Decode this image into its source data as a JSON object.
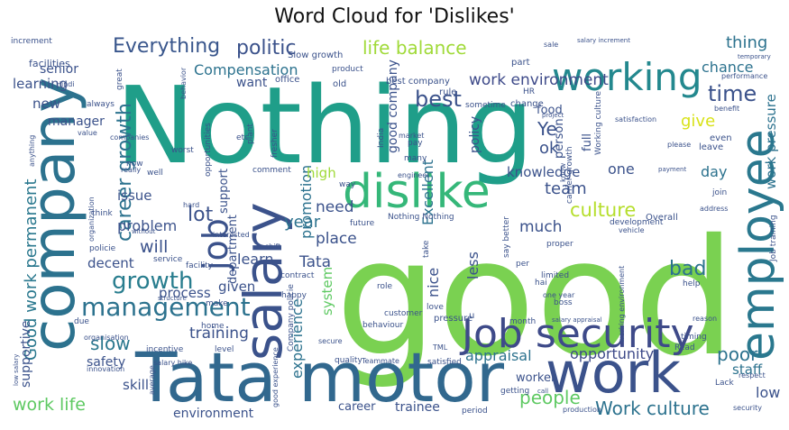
{
  "title": "Word Cloud for 'Dislikes'",
  "palette": {
    "dark_purple": "#472c7a",
    "indigo": "#3b528b",
    "blue": "#2c728e",
    "teal": "#21918c",
    "green_teal": "#28ae80",
    "green": "#5ec962",
    "lime": "#addc30",
    "yellow": "#d8e219"
  },
  "chart_data": {
    "type": "wordcloud",
    "words": [
      {
        "text": "Nothing",
        "color": "#1f9e89"
      },
      {
        "text": "good",
        "color": "#7ad151"
      },
      {
        "text": "Tata motor",
        "color": "#31688e"
      },
      {
        "text": "work",
        "color": "#3b528b"
      },
      {
        "text": "company",
        "color": "#2c728e"
      },
      {
        "text": "salary",
        "color": "#3b528b"
      },
      {
        "text": "dislike",
        "color": "#35b779"
      },
      {
        "text": "Job security",
        "color": "#3e4a89"
      },
      {
        "text": "employee",
        "color": "#2a788e"
      },
      {
        "text": "working",
        "color": "#23888e"
      },
      {
        "text": "job",
        "color": "#3b528b"
      },
      {
        "text": "management",
        "color": "#2c728e"
      },
      {
        "text": "growth",
        "color": "#287d8e"
      },
      {
        "text": "Good work permanent",
        "color": "#2a788e"
      },
      {
        "text": "career growth",
        "color": "#2c728e"
      },
      {
        "text": "Everything",
        "color": "#39568c"
      },
      {
        "text": "politic",
        "color": "#3b528b"
      },
      {
        "text": "life balance",
        "color": "#a0da39"
      },
      {
        "text": "work environment",
        "color": "#3e4a89"
      },
      {
        "text": "time",
        "color": "#3b528b"
      },
      {
        "text": "culture",
        "color": "#b5de2b"
      },
      {
        "text": "work life",
        "color": "#5ec962"
      },
      {
        "text": "lot",
        "color": "#3b528b"
      },
      {
        "text": "will",
        "color": "#3b528b"
      },
      {
        "text": "slow",
        "color": "#2a788e"
      },
      {
        "text": "bad",
        "color": "#2c728e"
      },
      {
        "text": "poor",
        "color": "#2c728e"
      },
      {
        "text": "Work culture",
        "color": "#2c728e"
      },
      {
        "text": "people",
        "color": "#5ec962"
      },
      {
        "text": "experience",
        "color": "#2c728e"
      },
      {
        "text": "promotion",
        "color": "#2c728e"
      },
      {
        "text": "Excellent",
        "color": "#2c728e"
      },
      {
        "text": "good company",
        "color": "#3b528b"
      },
      {
        "text": "best",
        "color": "#3b528b"
      },
      {
        "text": "Compensation",
        "color": "#2c728e"
      },
      {
        "text": "team",
        "color": "#3b528b"
      },
      {
        "text": "Ye",
        "color": "#3b528b"
      },
      {
        "text": "ok",
        "color": "#3b528b"
      },
      {
        "text": "give",
        "color": "#d8e219"
      },
      {
        "text": "thing",
        "color": "#2c728e"
      },
      {
        "text": "chance",
        "color": "#2c728e"
      },
      {
        "text": "day",
        "color": "#2c728e"
      },
      {
        "text": "work pressure",
        "color": "#2c728e"
      },
      {
        "text": "year",
        "color": "#2c728e"
      },
      {
        "text": "need",
        "color": "#3b528b"
      },
      {
        "text": "place",
        "color": "#3b528b"
      },
      {
        "text": "system",
        "color": "#5ec962"
      },
      {
        "text": "less",
        "color": "#3b528b"
      },
      {
        "text": "nice",
        "color": "#3b528b"
      },
      {
        "text": "Tata",
        "color": "#3b528b"
      },
      {
        "text": "learn",
        "color": "#3b528b"
      },
      {
        "text": "training",
        "color": "#3b528b"
      },
      {
        "text": "appraisal",
        "color": "#2c728e"
      },
      {
        "text": "opportunity",
        "color": "#3e4a89"
      },
      {
        "text": "skill",
        "color": "#3b528b"
      },
      {
        "text": "staff",
        "color": "#2c728e"
      },
      {
        "text": "low",
        "color": "#3b528b"
      },
      {
        "text": "knowledge",
        "color": "#3b528b"
      },
      {
        "text": "much",
        "color": "#3b528b"
      },
      {
        "text": "problem",
        "color": "#3b528b"
      },
      {
        "text": "issue",
        "color": "#3b528b"
      },
      {
        "text": "decent",
        "color": "#3b528b"
      },
      {
        "text": "process",
        "color": "#3b528b"
      },
      {
        "text": "given",
        "color": "#3b528b"
      },
      {
        "text": "senior",
        "color": "#3b528b"
      },
      {
        "text": "learning",
        "color": "#3b528b"
      },
      {
        "text": "new",
        "color": "#3b528b"
      },
      {
        "text": "manager",
        "color": "#3b528b"
      },
      {
        "text": "safety",
        "color": "#3b528b"
      },
      {
        "text": "environment",
        "color": "#3b528b"
      },
      {
        "text": "supportive",
        "color": "#3b528b"
      },
      {
        "text": "high",
        "color": "#a0da39"
      },
      {
        "text": "support",
        "color": "#3b528b"
      },
      {
        "text": "department",
        "color": "#3b528b"
      },
      {
        "text": "want",
        "color": "#3b528b"
      },
      {
        "text": "policy",
        "color": "#3b528b"
      },
      {
        "text": "one",
        "color": "#3b528b"
      },
      {
        "text": "full",
        "color": "#3b528b"
      },
      {
        "text": "person",
        "color": "#3b528b"
      },
      {
        "text": "food",
        "color": "#3b528b"
      },
      {
        "text": "worker",
        "color": "#3b528b"
      },
      {
        "text": "career",
        "color": "#3b528b"
      },
      {
        "text": "trainee",
        "color": "#3b528b"
      },
      {
        "text": "facilities",
        "color": "#3b528b"
      },
      {
        "text": "increment",
        "color": "#3b528b"
      },
      {
        "text": "salary increment",
        "color": "#3b528b"
      },
      {
        "text": "sale",
        "color": "#3b528b"
      },
      {
        "text": "temporary",
        "color": "#3b528b"
      },
      {
        "text": "performance",
        "color": "#3b528b"
      },
      {
        "text": "benefit",
        "color": "#3b528b"
      },
      {
        "text": "Slow growth",
        "color": "#3b528b"
      },
      {
        "text": "best company",
        "color": "#3b528b"
      },
      {
        "text": "part",
        "color": "#3b528b"
      },
      {
        "text": "product",
        "color": "#3b528b"
      },
      {
        "text": "office",
        "color": "#3b528b"
      },
      {
        "text": "old",
        "color": "#3b528b"
      },
      {
        "text": "sometime",
        "color": "#3b528b"
      },
      {
        "text": "HR",
        "color": "#3b528b"
      },
      {
        "text": "change",
        "color": "#3b528b"
      },
      {
        "text": "satisfaction",
        "color": "#3b528b"
      },
      {
        "text": "rule",
        "color": "#3b528b"
      },
      {
        "text": "Working culture",
        "color": "#3b528b"
      },
      {
        "text": "even",
        "color": "#3b528b"
      },
      {
        "text": "leave",
        "color": "#3b528b"
      },
      {
        "text": "please",
        "color": "#3b528b"
      },
      {
        "text": "payment",
        "color": "#3b528b"
      },
      {
        "text": "join",
        "color": "#3b528b"
      },
      {
        "text": "carrier growth",
        "color": "#3b528b"
      },
      {
        "text": "address",
        "color": "#3b528b"
      },
      {
        "text": "Overall",
        "color": "#3b528b"
      },
      {
        "text": "development",
        "color": "#3b528b"
      },
      {
        "text": "Job training",
        "color": "#3b528b"
      },
      {
        "text": "vehicle",
        "color": "#3b528b"
      },
      {
        "text": "help",
        "color": "#3b528b"
      },
      {
        "text": "reason",
        "color": "#3b528b"
      },
      {
        "text": "timing",
        "color": "#3b528b"
      },
      {
        "text": "Read",
        "color": "#3b528b"
      },
      {
        "text": "Lack",
        "color": "#3b528b"
      },
      {
        "text": "respect",
        "color": "#3b528b"
      },
      {
        "text": "security",
        "color": "#3b528b"
      },
      {
        "text": "Hindi",
        "color": "#3b528b"
      },
      {
        "text": "great",
        "color": "#3b528b"
      },
      {
        "text": "behavior",
        "color": "#3b528b"
      },
      {
        "text": "always",
        "color": "#3b528b"
      },
      {
        "text": "value",
        "color": "#3b528b"
      },
      {
        "text": "companies",
        "color": "#3b528b"
      },
      {
        "text": "anything",
        "color": "#3b528b"
      },
      {
        "text": "now",
        "color": "#3b528b"
      },
      {
        "text": "really",
        "color": "#3b528b"
      },
      {
        "text": "well",
        "color": "#3b528b"
      },
      {
        "text": "worst",
        "color": "#3b528b"
      },
      {
        "text": "opportunities",
        "color": "#3b528b"
      },
      {
        "text": "etc",
        "color": "#3b528b"
      },
      {
        "text": "plant",
        "color": "#3b528b"
      },
      {
        "text": "fresher",
        "color": "#3b528b"
      },
      {
        "text": "India",
        "color": "#3b528b"
      },
      {
        "text": "market",
        "color": "#3b528b"
      },
      {
        "text": "pay",
        "color": "#3b528b"
      },
      {
        "text": "many",
        "color": "#3b528b"
      },
      {
        "text": "engineer",
        "color": "#3b528b"
      },
      {
        "text": "project",
        "color": "#3b528b"
      },
      {
        "text": "comment",
        "color": "#3b528b"
      },
      {
        "text": "way",
        "color": "#3b528b"
      },
      {
        "text": "future",
        "color": "#3b528b"
      },
      {
        "text": "Nothing Nothing",
        "color": "#3b528b"
      },
      {
        "text": "hard",
        "color": "#3b528b"
      },
      {
        "text": "organization",
        "color": "#3b528b"
      },
      {
        "text": "think",
        "color": "#3b528b"
      },
      {
        "text": "without",
        "color": "#3b528b"
      },
      {
        "text": "policie",
        "color": "#3b528b"
      },
      {
        "text": "interested",
        "color": "#3b528b"
      },
      {
        "text": "shift",
        "color": "#3b528b"
      },
      {
        "text": "take",
        "color": "#3b528b"
      },
      {
        "text": "say better",
        "color": "#3b528b"
      },
      {
        "text": "per",
        "color": "#3b528b"
      },
      {
        "text": "proper",
        "color": "#3b528b"
      },
      {
        "text": "hai",
        "color": "#3b528b"
      },
      {
        "text": "service",
        "color": "#3b528b"
      },
      {
        "text": "facility",
        "color": "#3b528b"
      },
      {
        "text": "contract",
        "color": "#3b528b"
      },
      {
        "text": "role",
        "color": "#3b528b"
      },
      {
        "text": "limited",
        "color": "#3b528b"
      },
      {
        "text": "one year",
        "color": "#3b528b"
      },
      {
        "text": "boss",
        "color": "#3b528b"
      },
      {
        "text": "due",
        "color": "#3b528b"
      },
      {
        "text": "structure",
        "color": "#3b528b"
      },
      {
        "text": "make",
        "color": "#3b528b"
      },
      {
        "text": "happy",
        "color": "#3b528b"
      },
      {
        "text": "Company policie",
        "color": "#3b528b"
      },
      {
        "text": "customer",
        "color": "#3b528b"
      },
      {
        "text": "love",
        "color": "#3b528b"
      },
      {
        "text": "pressure",
        "color": "#3b528b"
      },
      {
        "text": "month",
        "color": "#3b528b"
      },
      {
        "text": "salary appraisal",
        "color": "#3b528b"
      },
      {
        "text": "working environment",
        "color": "#3b528b"
      },
      {
        "text": "organisation",
        "color": "#3b528b"
      },
      {
        "text": "home",
        "color": "#3b528b"
      },
      {
        "text": "incentive",
        "color": "#3b528b"
      },
      {
        "text": "level",
        "color": "#3b528b"
      },
      {
        "text": "behaviour",
        "color": "#3b528b"
      },
      {
        "text": "u",
        "color": "#3b528b"
      },
      {
        "text": "secure",
        "color": "#3b528b"
      },
      {
        "text": "TML",
        "color": "#3b528b"
      },
      {
        "text": "Teammate",
        "color": "#3b528b"
      },
      {
        "text": "satisfied",
        "color": "#3b528b"
      },
      {
        "text": "quality",
        "color": "#3b528b"
      },
      {
        "text": "innovation",
        "color": "#3b528b"
      },
      {
        "text": "salary hike",
        "color": "#3b528b"
      },
      {
        "text": "low salary",
        "color": "#3b528b"
      },
      {
        "text": "good experience",
        "color": "#3b528b"
      },
      {
        "text": "average",
        "color": "#3b528b"
      },
      {
        "text": "getting",
        "color": "#3b528b"
      },
      {
        "text": "call",
        "color": "#3b528b"
      },
      {
        "text": "period",
        "color": "#3b528b"
      },
      {
        "text": "production",
        "color": "#3b528b"
      },
      {
        "text": "know",
        "color": "#3b528b"
      }
    ]
  }
}
